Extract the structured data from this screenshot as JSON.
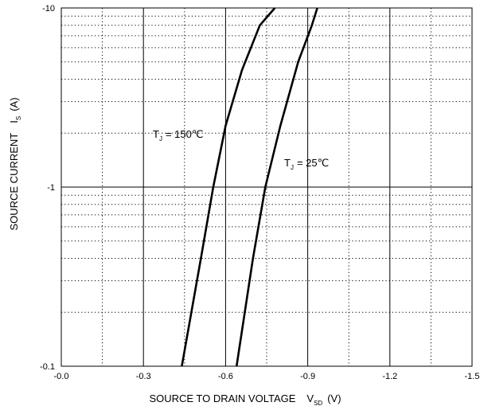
{
  "chart_data": {
    "type": "line",
    "title": "",
    "xlabel": "SOURCE TO DRAIN VOLTAGE",
    "xlabel_symbol": "V",
    "xlabel_subscript": "SD",
    "xlabel_unit": "(V)",
    "ylabel": "SOURCE CURRENT",
    "ylabel_symbol": "I",
    "ylabel_subscript": "S",
    "ylabel_unit": "(A)",
    "xlim": [
      0,
      -1.5
    ],
    "ylim": [
      -0.1,
      -10
    ],
    "y_scale": "log",
    "grid": true,
    "x_tick_labels": [
      "-0.0",
      "-0.3",
      "-0.6",
      "-0.9",
      "-1.2",
      "-1.5"
    ],
    "x_tick_values": [
      0,
      -0.3,
      -0.6,
      -0.9,
      -1.2,
      -1.5
    ],
    "y_tick_labels": [
      "-0.1",
      "-1",
      "-10"
    ],
    "y_tick_values": [
      -0.1,
      -1,
      -10
    ],
    "series": [
      {
        "name": "TJ = 150℃",
        "label_main": "T",
        "label_sub": "J",
        "label_rest": "= 150℃",
        "color": "#000000",
        "points": [
          [
            -0.44,
            -0.1
          ],
          [
            -0.475,
            -0.2
          ],
          [
            -0.51,
            -0.4
          ],
          [
            -0.555,
            -1.0
          ],
          [
            -0.6,
            -2.2
          ],
          [
            -0.66,
            -4.5
          ],
          [
            -0.725,
            -8.0
          ],
          [
            -0.78,
            -10.0
          ]
        ]
      },
      {
        "name": "TJ = 25℃",
        "label_main": "T",
        "label_sub": "J",
        "label_rest": "= 25℃",
        "color": "#000000",
        "points": [
          [
            -0.64,
            -0.1
          ],
          [
            -0.67,
            -0.2
          ],
          [
            -0.7,
            -0.4
          ],
          [
            -0.745,
            -1.0
          ],
          [
            -0.8,
            -2.2
          ],
          [
            -0.865,
            -5.0
          ],
          [
            -0.915,
            -8.0
          ],
          [
            -0.935,
            -10.0
          ]
        ]
      }
    ]
  }
}
